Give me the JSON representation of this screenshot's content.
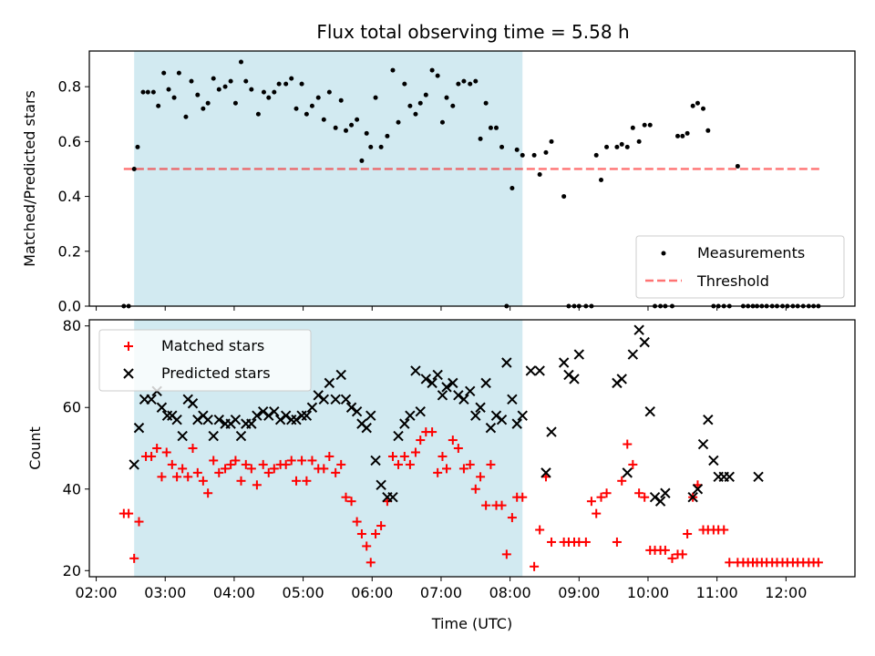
{
  "figure": {
    "title": "Flux total observing time = 5.58 h",
    "xlabel": "Time (UTC)",
    "top_ylabel": "Matched/Predicted stars",
    "bottom_ylabel": "Count"
  },
  "colors": {
    "shade": "#add8e6",
    "measurement": "#000000",
    "threshold": "#ff0000",
    "matched": "#ff0000",
    "predicted": "#000000"
  },
  "chart_data": [
    {
      "type": "scatter",
      "title": "Flux total observing time = 5.58 h",
      "xlabel": "",
      "ylabel": "Matched/Predicted stars",
      "x_unit": "hours UTC",
      "xlim": [
        1.9,
        13.0
      ],
      "ylim": [
        0.0,
        0.93
      ],
      "yticks": [
        0.0,
        0.2,
        0.4,
        0.6,
        0.8
      ],
      "ytick_labels": [
        "0.0",
        "0.2",
        "0.4",
        "0.6",
        "0.8"
      ],
      "xticks": [
        2,
        3,
        4,
        5,
        6,
        7,
        8,
        9,
        10,
        11,
        12
      ],
      "xtick_labels": [
        "",
        "",
        "",
        "",
        "",
        "",
        "",
        "",
        "",
        "",
        ""
      ],
      "grid": false,
      "legend": "lower-right",
      "shaded_span": [
        2.55,
        8.18
      ],
      "threshold": {
        "name": "Threshold",
        "value": 0.5,
        "x_range": [
          2.4,
          12.5
        ]
      },
      "series": [
        {
          "name": "Measurements",
          "x": [
            2.4,
            2.47,
            2.55,
            2.6,
            2.68,
            2.75,
            2.83,
            2.9,
            2.98,
            3.05,
            3.13,
            3.2,
            3.3,
            3.38,
            3.47,
            3.55,
            3.62,
            3.7,
            3.78,
            3.87,
            3.95,
            4.02,
            4.1,
            4.17,
            4.25,
            4.35,
            4.43,
            4.5,
            4.58,
            4.65,
            4.75,
            4.83,
            4.9,
            4.98,
            5.05,
            5.13,
            5.22,
            5.3,
            5.38,
            5.47,
            5.55,
            5.62,
            5.7,
            5.78,
            5.85,
            5.92,
            5.98,
            6.05,
            6.13,
            6.22,
            6.3,
            6.38,
            6.47,
            6.55,
            6.63,
            6.7,
            6.78,
            6.87,
            6.95,
            7.02,
            7.08,
            7.17,
            7.25,
            7.33,
            7.42,
            7.5,
            7.57,
            7.65,
            7.72,
            7.8,
            7.88,
            7.95,
            8.03,
            8.1,
            8.18,
            8.35,
            8.43,
            8.52,
            8.6,
            8.78,
            8.85,
            8.93,
            9.0,
            9.1,
            9.18,
            9.25,
            9.32,
            9.4,
            9.55,
            9.62,
            9.7,
            9.78,
            9.87,
            9.95,
            10.03,
            10.1,
            10.18,
            10.25,
            10.35,
            10.43,
            10.5,
            10.57,
            10.65,
            10.72,
            10.8,
            10.87,
            10.95,
            11.02,
            11.1,
            11.18,
            11.3,
            11.38,
            11.45,
            11.52,
            11.58,
            11.65,
            11.72,
            11.8,
            11.87,
            11.95,
            12.02,
            12.1,
            12.17,
            12.25,
            12.33,
            12.4,
            12.47
          ],
          "y": [
            0.0,
            0.0,
            0.5,
            0.58,
            0.78,
            0.78,
            0.78,
            0.73,
            0.85,
            0.79,
            0.76,
            0.85,
            0.69,
            0.82,
            0.77,
            0.72,
            0.74,
            0.83,
            0.79,
            0.8,
            0.82,
            0.74,
            0.89,
            0.82,
            0.79,
            0.7,
            0.78,
            0.76,
            0.78,
            0.81,
            0.81,
            0.83,
            0.72,
            0.81,
            0.7,
            0.73,
            0.76,
            0.68,
            0.78,
            0.65,
            0.75,
            0.64,
            0.66,
            0.68,
            0.53,
            0.63,
            0.58,
            0.76,
            0.58,
            0.62,
            0.86,
            0.67,
            0.81,
            0.73,
            0.7,
            0.74,
            0.77,
            0.86,
            0.84,
            0.67,
            0.76,
            0.73,
            0.81,
            0.82,
            0.81,
            0.82,
            0.61,
            0.74,
            0.65,
            0.65,
            0.58,
            0.0,
            0.43,
            0.57,
            0.55,
            0.55,
            0.48,
            0.56,
            0.6,
            0.4,
            0.0,
            0.0,
            0.0,
            0.0,
            0.0,
            0.55,
            0.46,
            0.58,
            0.58,
            0.59,
            0.58,
            0.65,
            0.6,
            0.66,
            0.66,
            0.0,
            0.0,
            0.0,
            0.0,
            0.62,
            0.62,
            0.63,
            0.73,
            0.74,
            0.72,
            0.64,
            0.0,
            0.0,
            0.0,
            0.0,
            0.51,
            0.0,
            0.0,
            0.0,
            0.0,
            0.0,
            0.0,
            0.0,
            0.0,
            0.0,
            0.0,
            0.0,
            0.0,
            0.0,
            0.0,
            0.0,
            0.0
          ]
        }
      ]
    },
    {
      "type": "scatter",
      "title": "",
      "xlabel": "Time (UTC)",
      "ylabel": "Count",
      "x_unit": "hours UTC",
      "xlim": [
        1.9,
        13.0
      ],
      "ylim": [
        18.5,
        81.5
      ],
      "yticks": [
        20,
        40,
        60,
        80
      ],
      "ytick_labels": [
        "20",
        "40",
        "60",
        "80"
      ],
      "xticks": [
        2,
        3,
        4,
        5,
        6,
        7,
        8,
        9,
        10,
        11,
        12
      ],
      "xtick_labels": [
        "02:00",
        "03:00",
        "04:00",
        "05:00",
        "06:00",
        "07:00",
        "08:00",
        "09:00",
        "10:00",
        "11:00",
        "12:00"
      ],
      "grid": false,
      "legend": "upper-left",
      "shaded_span": [
        2.55,
        8.18
      ],
      "series": [
        {
          "name": "Matched stars",
          "marker": "+",
          "x": [
            2.4,
            2.47,
            2.55,
            2.62,
            2.72,
            2.8,
            2.88,
            2.95,
            3.02,
            3.1,
            3.17,
            3.25,
            3.33,
            3.4,
            3.47,
            3.55,
            3.62,
            3.7,
            3.78,
            3.87,
            3.95,
            4.02,
            4.1,
            4.17,
            4.25,
            4.33,
            4.42,
            4.5,
            4.58,
            4.67,
            4.75,
            4.83,
            4.9,
            4.98,
            5.05,
            5.13,
            5.22,
            5.3,
            5.38,
            5.47,
            5.55,
            5.62,
            5.7,
            5.78,
            5.85,
            5.92,
            5.98,
            6.05,
            6.13,
            6.22,
            6.3,
            6.38,
            6.47,
            6.55,
            6.63,
            6.7,
            6.78,
            6.87,
            6.95,
            7.02,
            7.08,
            7.17,
            7.25,
            7.33,
            7.42,
            7.5,
            7.57,
            7.65,
            7.72,
            7.8,
            7.88,
            7.95,
            8.03,
            8.1,
            8.18,
            8.35,
            8.43,
            8.52,
            8.6,
            8.78,
            8.85,
            8.93,
            9.0,
            9.1,
            9.18,
            9.25,
            9.32,
            9.4,
            9.55,
            9.62,
            9.7,
            9.78,
            9.87,
            9.95,
            10.03,
            10.1,
            10.18,
            10.25,
            10.35,
            10.43,
            10.5,
            10.57,
            10.65,
            10.72,
            10.8,
            10.87,
            10.95,
            11.02,
            11.1,
            11.18,
            11.3,
            11.38,
            11.45,
            11.52,
            11.58,
            11.65,
            11.72,
            11.8,
            11.87,
            11.95,
            12.02,
            12.1,
            12.17,
            12.25,
            12.33,
            12.4,
            12.47
          ],
          "y": [
            34,
            34,
            23,
            32,
            48,
            48,
            50,
            43,
            49,
            46,
            43,
            45,
            43,
            50,
            44,
            42,
            39,
            47,
            44,
            45,
            46,
            47,
            42,
            46,
            45,
            41,
            46,
            44,
            45,
            46,
            46,
            47,
            42,
            47,
            42,
            47,
            45,
            45,
            48,
            44,
            46,
            38,
            37,
            32,
            29,
            26,
            22,
            29,
            31,
            37,
            48,
            46,
            48,
            46,
            49,
            52,
            54,
            54,
            44,
            48,
            45,
            52,
            50,
            45,
            46,
            40,
            43,
            36,
            46,
            36,
            36,
            24,
            33,
            38,
            38,
            21,
            30,
            43,
            27,
            27,
            27,
            27,
            27,
            27,
            37,
            34,
            38,
            39,
            27,
            42,
            51,
            46,
            39,
            38,
            25,
            25,
            25,
            25,
            23,
            24,
            24,
            29,
            38,
            41,
            30,
            30,
            30,
            30,
            30,
            22,
            22,
            22,
            22,
            22,
            22,
            22,
            22,
            22,
            22,
            22,
            22,
            22,
            22,
            22,
            22,
            22,
            22
          ]
        },
        {
          "name": "Predicted stars",
          "marker": "x",
          "x": [
            2.55,
            2.62,
            2.7,
            2.8,
            2.88,
            2.95,
            3.03,
            3.1,
            3.17,
            3.25,
            3.33,
            3.4,
            3.47,
            3.55,
            3.62,
            3.7,
            3.78,
            3.87,
            3.95,
            4.02,
            4.1,
            4.17,
            4.25,
            4.33,
            4.42,
            4.5,
            4.58,
            4.67,
            4.75,
            4.83,
            4.9,
            4.98,
            5.05,
            5.13,
            5.22,
            5.3,
            5.38,
            5.47,
            5.55,
            5.62,
            5.7,
            5.78,
            5.85,
            5.92,
            5.98,
            6.05,
            6.13,
            6.22,
            6.3,
            6.38,
            6.47,
            6.55,
            6.63,
            6.7,
            6.78,
            6.87,
            6.95,
            7.02,
            7.08,
            7.17,
            7.25,
            7.33,
            7.42,
            7.5,
            7.57,
            7.65,
            7.72,
            7.8,
            7.88,
            7.95,
            8.03,
            8.1,
            8.18,
            8.3,
            8.43,
            8.52,
            8.6,
            8.78,
            8.85,
            8.93,
            9.0,
            9.55,
            9.62,
            9.7,
            9.78,
            9.87,
            9.95,
            10.03,
            10.1,
            10.18,
            10.25,
            10.65,
            10.72,
            10.8,
            10.87,
            10.95,
            11.02,
            11.1,
            11.18,
            11.6
          ],
          "y": [
            46,
            55,
            62,
            62,
            64,
            60,
            58,
            58,
            57,
            53,
            62,
            61,
            57,
            58,
            57,
            53,
            57,
            56,
            56,
            57,
            53,
            56,
            56,
            58,
            59,
            58,
            59,
            57,
            58,
            57,
            57,
            58,
            58,
            60,
            63,
            62,
            66,
            62,
            68,
            62,
            60,
            59,
            56,
            55,
            58,
            47,
            41,
            38,
            38,
            53,
            56,
            58,
            69,
            59,
            67,
            66,
            68,
            63,
            65,
            66,
            63,
            62,
            64,
            58,
            60,
            66,
            55,
            58,
            57,
            71,
            62,
            56,
            58,
            69,
            69,
            44,
            54,
            71,
            68,
            67,
            73,
            66,
            67,
            44,
            73,
            79,
            76,
            59,
            38,
            37,
            39,
            38,
            40,
            51,
            57,
            47,
            43,
            43,
            43,
            43
          ]
        }
      ]
    }
  ]
}
